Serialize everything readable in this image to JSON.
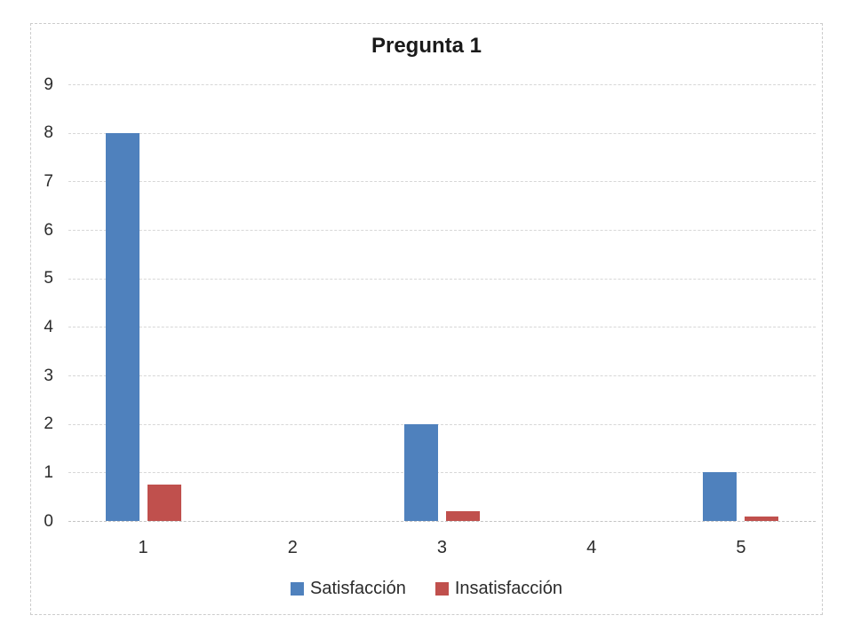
{
  "chart_data": {
    "type": "bar",
    "title": "Pregunta 1",
    "categories": [
      "1",
      "2",
      "3",
      "4",
      "5"
    ],
    "series": [
      {
        "name": "Satisfacción",
        "color": "#4F81BD",
        "values": [
          8,
          0,
          2,
          0,
          1
        ]
      },
      {
        "name": "Insatisfacción",
        "color": "#C0504D",
        "values": [
          0.75,
          0,
          0.2,
          0,
          0.1
        ]
      }
    ],
    "ylim": [
      0,
      9
    ],
    "yticks": [
      "0",
      "1",
      "2",
      "3",
      "4",
      "5",
      "6",
      "7",
      "8",
      "9"
    ],
    "grid": true,
    "gridline_color": "#d7d7d7",
    "legend_position": "bottom"
  }
}
